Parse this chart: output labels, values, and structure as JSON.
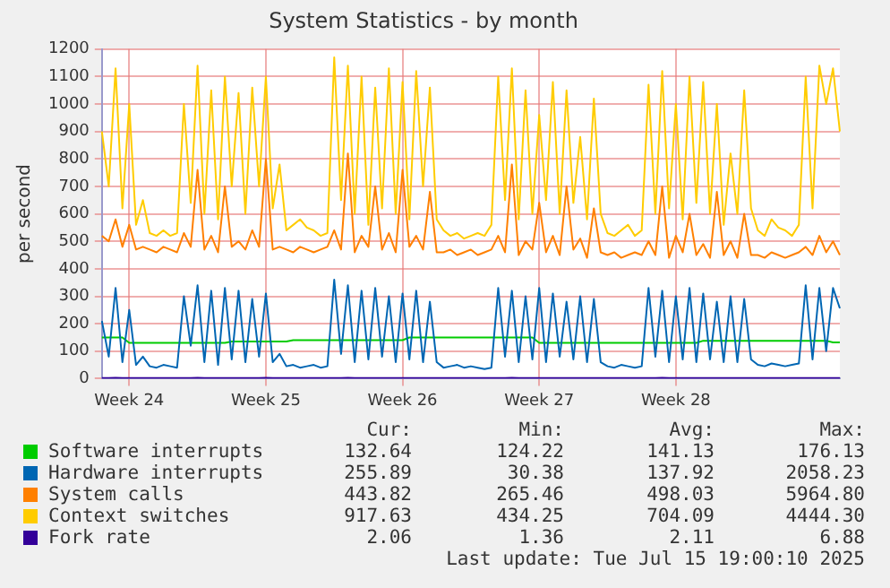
{
  "chart_data": {
    "type": "line",
    "title": "System Statistics - by month",
    "ylabel": "per second",
    "categories": [
      null,
      null,
      null,
      null,
      "Week 24",
      null,
      null,
      null,
      null,
      null,
      null,
      null,
      null,
      null,
      null,
      null,
      null,
      null,
      null,
      null,
      null,
      null,
      null,
      null,
      "Week 25",
      null,
      null,
      null,
      null,
      null,
      null,
      null,
      null,
      null,
      null,
      null,
      null,
      null,
      null,
      null,
      null,
      null,
      null,
      null,
      "Week 26",
      null,
      null,
      null,
      null,
      null,
      null,
      null,
      null,
      null,
      null,
      null,
      null,
      null,
      null,
      null,
      null,
      null,
      null,
      null,
      "Week 27",
      null,
      null,
      null,
      null,
      null,
      null,
      null,
      null,
      null,
      null,
      null,
      null,
      null,
      null,
      null,
      null,
      null,
      null,
      null,
      "Week 28",
      null,
      null,
      null,
      null,
      null,
      null,
      null,
      null,
      null,
      null,
      null,
      null,
      null,
      null,
      null,
      null,
      null,
      null,
      null,
      null,
      null,
      null,
      null,
      null
    ],
    "series": [
      {
        "name": "Software interrupts",
        "color": "#00cc00",
        "values": [
          150,
          150,
          150,
          150,
          130,
          130,
          130,
          130,
          130,
          130,
          130,
          130,
          130,
          130,
          130,
          130,
          130,
          130,
          130,
          135,
          135,
          135,
          135,
          135,
          135,
          135,
          135,
          135,
          140,
          140,
          140,
          140,
          140,
          140,
          140,
          140,
          140,
          140,
          140,
          140,
          140,
          140,
          140,
          140,
          140,
          150,
          150,
          150,
          150,
          150,
          150,
          150,
          150,
          150,
          150,
          150,
          150,
          150,
          150,
          150,
          150,
          150,
          150,
          150,
          130,
          130,
          130,
          130,
          130,
          130,
          130,
          130,
          130,
          130,
          130,
          130,
          130,
          130,
          130,
          130,
          130,
          130,
          130,
          130,
          130,
          130,
          130,
          130,
          138,
          138,
          138,
          138,
          138,
          138,
          138,
          138,
          138,
          138,
          138,
          138,
          138,
          138,
          138,
          138,
          138,
          138,
          138,
          132,
          132
        ]
      },
      {
        "name": "Hardware interrupts",
        "color": "#0066b3",
        "values": [
          210,
          80,
          330,
          60,
          250,
          50,
          80,
          45,
          40,
          50,
          45,
          40,
          300,
          120,
          340,
          60,
          320,
          50,
          330,
          70,
          320,
          60,
          290,
          80,
          310,
          60,
          90,
          45,
          50,
          40,
          45,
          50,
          40,
          45,
          360,
          90,
          340,
          60,
          320,
          70,
          330,
          80,
          300,
          60,
          310,
          70,
          320,
          60,
          280,
          60,
          40,
          45,
          50,
          40,
          45,
          40,
          35,
          40,
          330,
          80,
          320,
          60,
          300,
          70,
          330,
          60,
          310,
          80,
          280,
          70,
          300,
          60,
          290,
          60,
          45,
          40,
          50,
          45,
          40,
          45,
          330,
          80,
          320,
          60,
          300,
          70,
          330,
          60,
          310,
          70,
          280,
          60,
          300,
          60,
          290,
          70,
          50,
          45,
          55,
          50,
          45,
          50,
          55,
          340,
          70,
          330,
          100,
          330,
          256
        ]
      },
      {
        "name": "System calls",
        "color": "#ff8000",
        "values": [
          520,
          500,
          580,
          480,
          560,
          470,
          480,
          470,
          460,
          480,
          470,
          460,
          530,
          480,
          760,
          470,
          520,
          460,
          700,
          480,
          500,
          470,
          540,
          480,
          800,
          470,
          480,
          470,
          460,
          480,
          470,
          460,
          470,
          480,
          540,
          470,
          820,
          460,
          520,
          480,
          700,
          470,
          530,
          460,
          760,
          480,
          520,
          470,
          680,
          460,
          460,
          470,
          450,
          460,
          470,
          450,
          460,
          470,
          520,
          460,
          780,
          450,
          500,
          470,
          640,
          460,
          520,
          450,
          700,
          470,
          510,
          440,
          620,
          460,
          450,
          460,
          440,
          450,
          460,
          450,
          500,
          450,
          700,
          440,
          520,
          460,
          600,
          450,
          490,
          440,
          680,
          450,
          500,
          440,
          600,
          450,
          450,
          440,
          460,
          450,
          440,
          450,
          460,
          480,
          450,
          520,
          460,
          500,
          450
        ]
      },
      {
        "name": "Context switches",
        "color": "#ffcc00",
        "values": [
          900,
          700,
          1130,
          620,
          1000,
          560,
          650,
          530,
          520,
          540,
          520,
          530,
          1000,
          640,
          1140,
          600,
          1050,
          580,
          1100,
          700,
          1040,
          600,
          1060,
          700,
          1100,
          620,
          780,
          540,
          560,
          580,
          550,
          540,
          520,
          530,
          1170,
          650,
          1140,
          600,
          1100,
          560,
          1060,
          620,
          1130,
          600,
          1080,
          580,
          1120,
          700,
          1060,
          580,
          540,
          520,
          530,
          510,
          520,
          530,
          520,
          560,
          1100,
          650,
          1130,
          580,
          1050,
          600,
          960,
          650,
          1080,
          600,
          1050,
          640,
          880,
          580,
          1020,
          600,
          530,
          520,
          540,
          560,
          520,
          540,
          1070,
          600,
          1120,
          620,
          1000,
          580,
          1100,
          640,
          1080,
          600,
          1000,
          560,
          820,
          600,
          1050,
          620,
          540,
          520,
          580,
          550,
          540,
          520,
          560,
          1100,
          620,
          1140,
          1000,
          1130,
          900
        ]
      },
      {
        "name": "Fork rate",
        "color": "#330099",
        "values": [
          2,
          2,
          3,
          2,
          2,
          2,
          2,
          2,
          2,
          2,
          2,
          2,
          2,
          2,
          3,
          2,
          2,
          2,
          2,
          2,
          2,
          2,
          2,
          2,
          3,
          2,
          2,
          2,
          2,
          2,
          2,
          2,
          2,
          2,
          2,
          2,
          3,
          2,
          2,
          2,
          2,
          2,
          2,
          2,
          2,
          2,
          2,
          2,
          2,
          2,
          2,
          2,
          2,
          2,
          2,
          2,
          2,
          2,
          2,
          2,
          3,
          2,
          2,
          2,
          2,
          2,
          2,
          2,
          2,
          2,
          2,
          2,
          2,
          2,
          2,
          2,
          2,
          2,
          2,
          2,
          2,
          2,
          3,
          2,
          2,
          2,
          2,
          2,
          2,
          2,
          2,
          2,
          2,
          2,
          2,
          2,
          2,
          2,
          2,
          2,
          2,
          2,
          2,
          2,
          2,
          2,
          2,
          2,
          2
        ]
      }
    ],
    "ylim": [
      0,
      1200
    ],
    "yticks": [
      0,
      100,
      200,
      300,
      400,
      500,
      600,
      700,
      800,
      900,
      1000,
      1100,
      1200
    ],
    "grid": true,
    "legend": "bottom",
    "marker": "none",
    "line_style": "solid",
    "annotations": [
      "Cur:",
      "Min:",
      "Avg:",
      "Max:",
      "132.64",
      "124.22",
      "141.13",
      "176.13",
      "255.89",
      "30.38",
      "137.92",
      "2058.23",
      "443.82",
      "265.46",
      "498.03",
      "5964.80",
      "917.63",
      "434.25",
      "704.09",
      "4444.30",
      "2.06",
      "1.36",
      "2.11",
      "6.88",
      "Last update: Tue Jul 15 19:00:10 2025"
    ]
  }
}
